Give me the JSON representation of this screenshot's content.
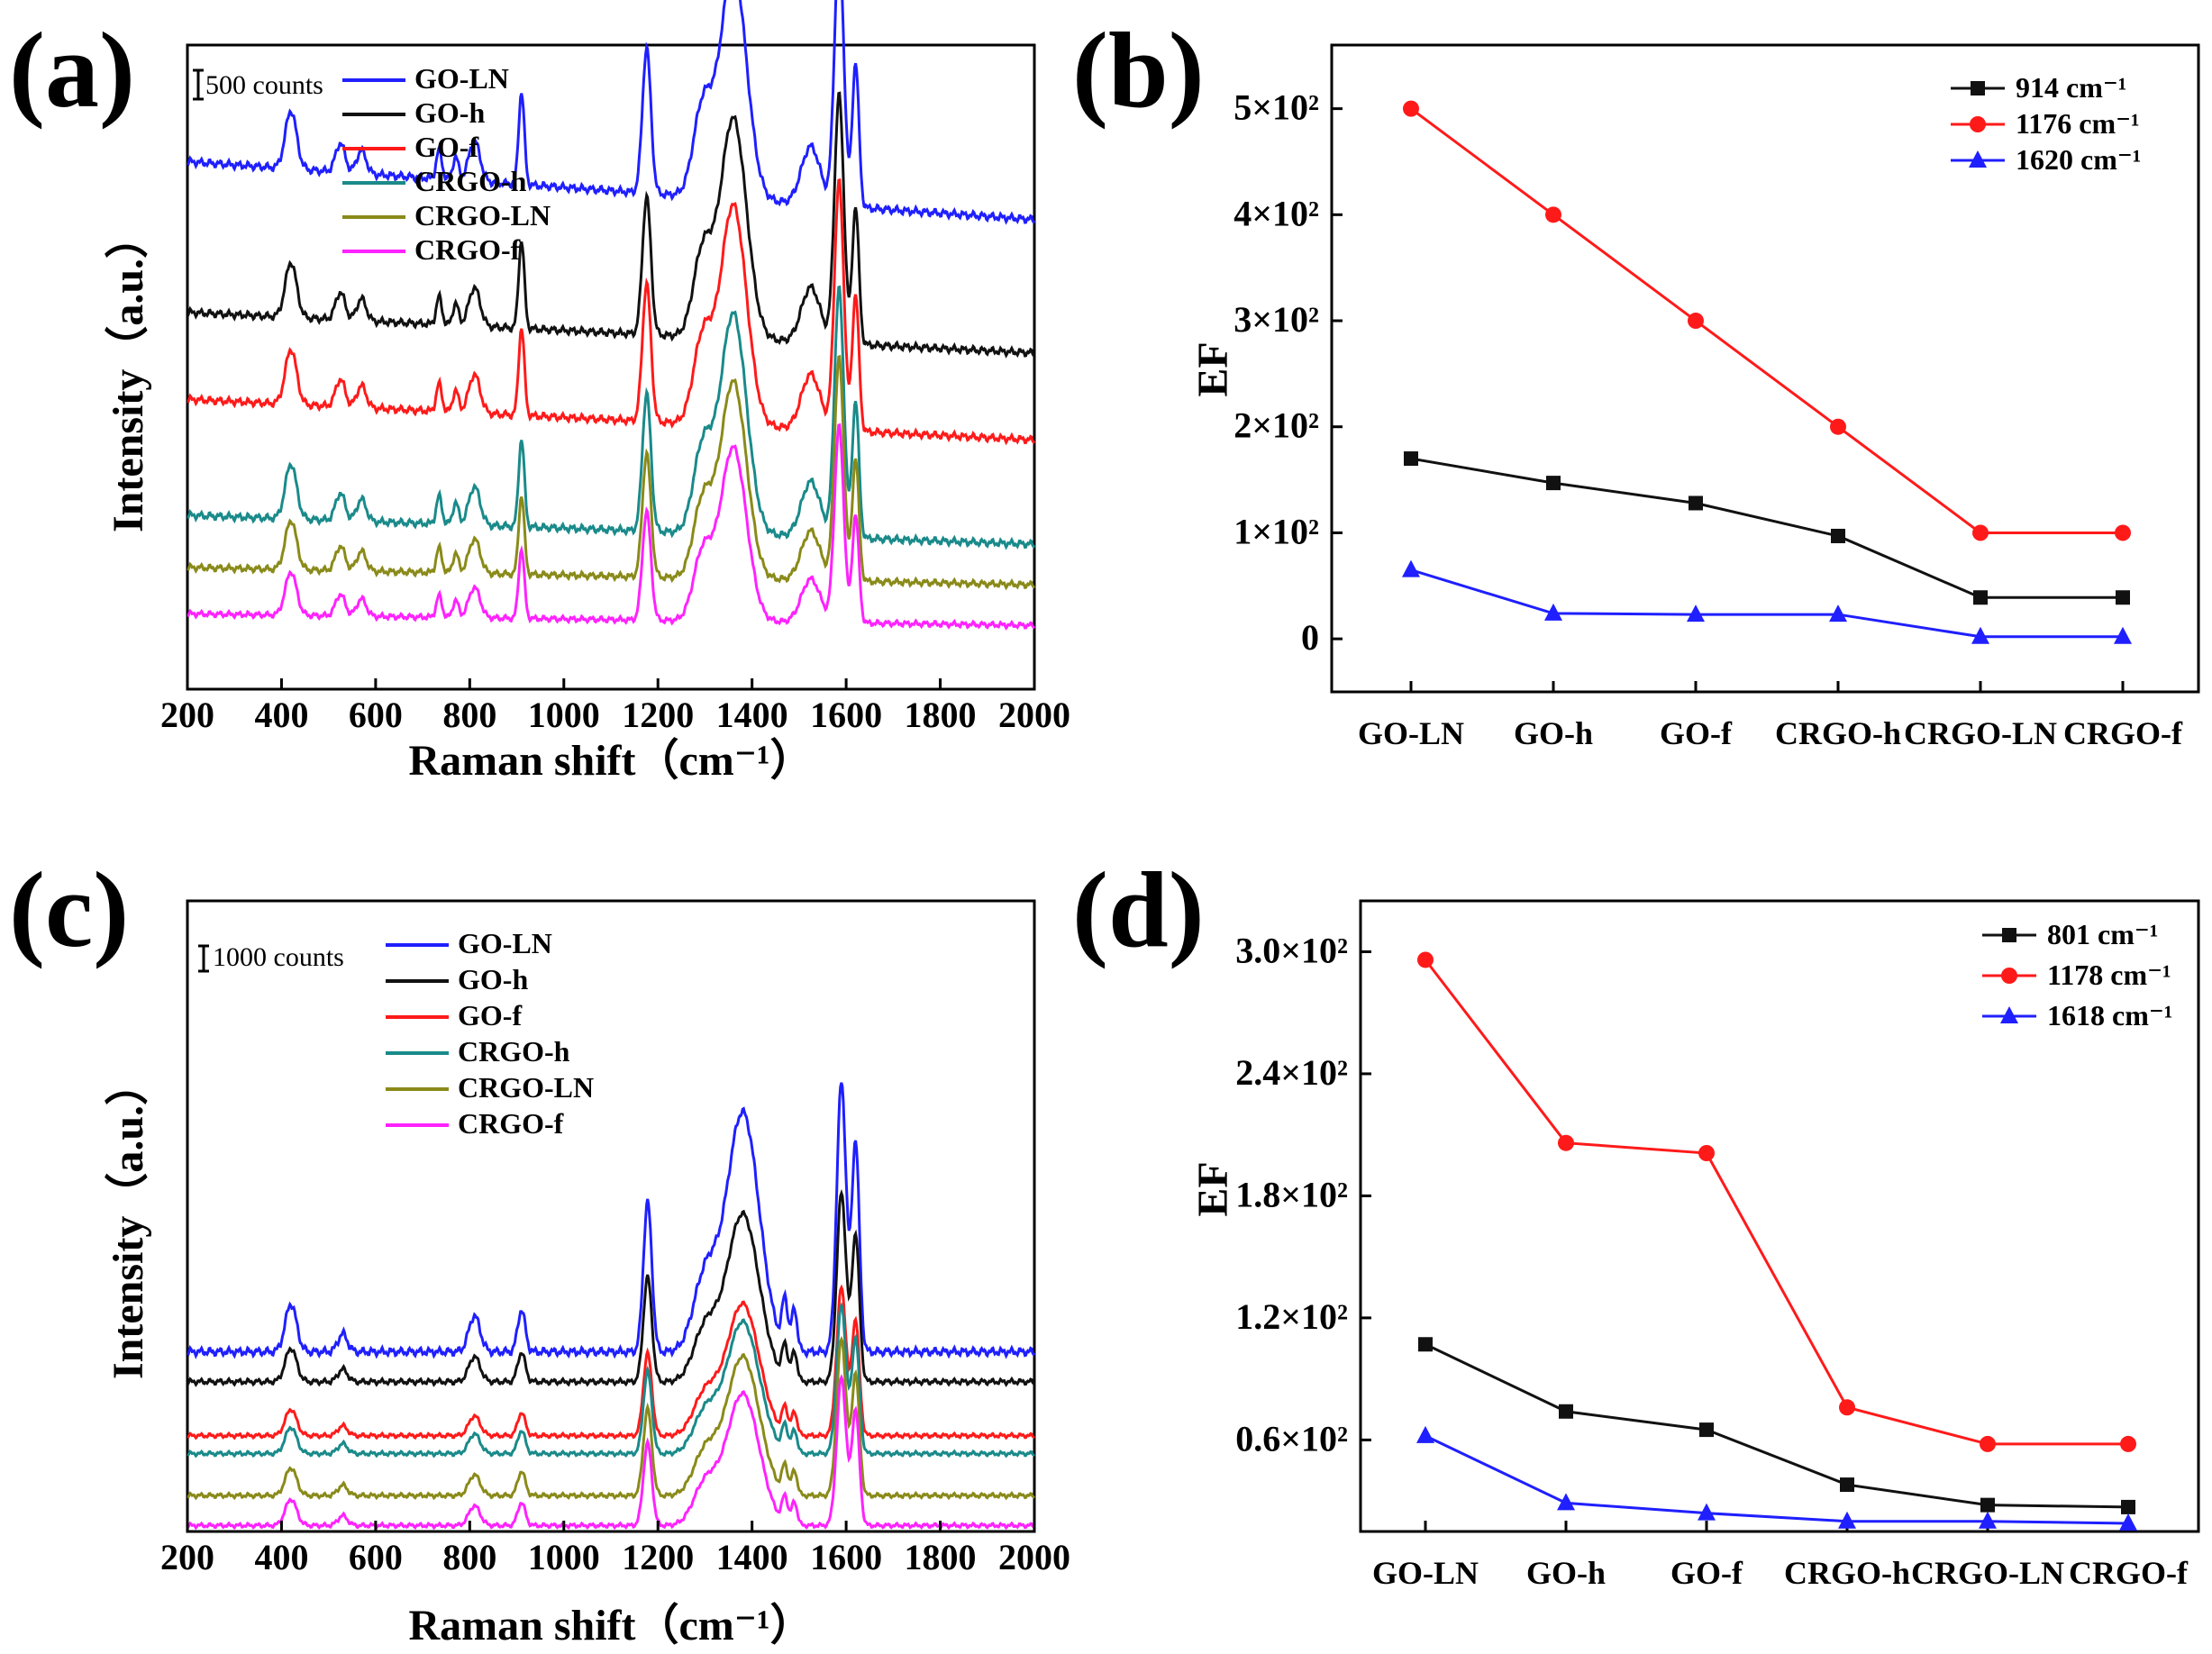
{
  "chart_data": [
    {
      "id": "a",
      "panel_label": "(a)",
      "type": "line",
      "xlabel": "Raman shift（cm⁻¹）",
      "ylabel": "Intensity（a.u.）",
      "xlim": [
        200,
        2000
      ],
      "xticks": [
        "200",
        "400",
        "600",
        "800",
        "1000",
        "1200",
        "1400",
        "1600",
        "1800",
        "2000"
      ],
      "scale_bar_label": "500 counts",
      "legend": [
        "GO-LN",
        "GO-h",
        "GO-f",
        "CRGO-h",
        "CRGO-LN",
        "CRGO-f"
      ],
      "series": [
        {
          "name": "GO-LN",
          "color": "#1f1fff",
          "baseline": 0.81,
          "tilt": 0.1,
          "amp": 1.0
        },
        {
          "name": "GO-h",
          "color": "#111111",
          "baseline": 0.58,
          "tilt": 0.07,
          "amp": 0.95
        },
        {
          "name": "GO-f",
          "color": "#ff1a1a",
          "baseline": 0.43,
          "tilt": 0.07,
          "amp": 0.95
        },
        {
          "name": "CRGO-h",
          "color": "#1a8a8a",
          "baseline": 0.25,
          "tilt": 0.05,
          "amp": 0.95
        },
        {
          "name": "CRGO-LN",
          "color": "#8a8a1a",
          "baseline": 0.18,
          "tilt": 0.03,
          "amp": 0.85
        },
        {
          "name": "CRGO-f",
          "color": "#ff22ff",
          "baseline": 0.11,
          "tilt": 0.02,
          "amp": 0.75
        }
      ],
      "peaks": [
        420,
        525,
        570,
        735,
        770,
        810,
        910,
        1176,
        1295,
        1360,
        1525,
        1585,
        1620
      ]
    },
    {
      "id": "b",
      "panel_label": "(b)",
      "type": "line",
      "ylabel": "EF",
      "categories": [
        "GO-LN",
        "GO-h",
        "GO-f",
        "CRGO-h",
        "CRGO-LN",
        "CRGO-f"
      ],
      "ylim": [
        -50,
        560
      ],
      "yticks": [
        {
          "v": 0,
          "label": "0"
        },
        {
          "v": 100,
          "label": "1×10²"
        },
        {
          "v": 200,
          "label": "2×10²"
        },
        {
          "v": 300,
          "label": "3×10²"
        },
        {
          "v": 400,
          "label": "4×10²"
        },
        {
          "v": 500,
          "label": "5×10²"
        }
      ],
      "series": [
        {
          "name": "914  cm⁻¹",
          "color": "#111111",
          "marker": "square",
          "values": [
            170,
            147,
            128,
            97,
            39,
            39
          ]
        },
        {
          "name": "1176  cm⁻¹",
          "color": "#ff1a1a",
          "marker": "circle",
          "values": [
            500,
            400,
            300,
            200,
            100,
            100
          ]
        },
        {
          "name": "1620  cm⁻¹",
          "color": "#1f1fff",
          "marker": "triangle",
          "values": [
            65,
            24,
            23,
            23,
            2,
            2
          ]
        }
      ]
    },
    {
      "id": "c",
      "panel_label": "(c)",
      "type": "line",
      "xlabel": "Raman shift（cm⁻¹）",
      "ylabel": "Intensity（a.u.）",
      "xlim": [
        200,
        2000
      ],
      "xticks": [
        "200",
        "400",
        "600",
        "800",
        "1000",
        "1200",
        "1400",
        "1600",
        "1800",
        "2000"
      ],
      "scale_bar_label": "1000 counts",
      "legend": [
        "GO-LN",
        "GO-h",
        "GO-f",
        "CRGO-h",
        "CRGO-LN",
        "CRGO-f"
      ],
      "series": [
        {
          "name": "GO-LN",
          "color": "#1f1fff",
          "baseline": 0.3,
          "tilt": 0.0,
          "amp": 1.0
        },
        {
          "name": "GO-h",
          "color": "#111111",
          "baseline": 0.25,
          "tilt": 0.0,
          "amp": 0.7
        },
        {
          "name": "GO-f",
          "color": "#ff1a1a",
          "baseline": 0.16,
          "tilt": 0.0,
          "amp": 0.55
        },
        {
          "name": "CRGO-h",
          "color": "#1a8a8a",
          "baseline": 0.13,
          "tilt": 0.0,
          "amp": 0.55
        },
        {
          "name": "CRGO-LN",
          "color": "#8a8a1a",
          "baseline": 0.06,
          "tilt": 0.0,
          "amp": 0.58
        },
        {
          "name": "CRGO-f",
          "color": "#ff22ff",
          "baseline": 0.01,
          "tilt": 0.0,
          "amp": 0.55
        }
      ],
      "peaks": [
        420,
        530,
        810,
        910,
        1000,
        1178,
        1380,
        1470,
        1590,
        1620
      ]
    },
    {
      "id": "d",
      "panel_label": "(d)",
      "type": "line",
      "ylabel": "EF",
      "categories": [
        "GO-LN",
        "GO-h",
        "GO-f",
        "CRGO-h",
        "CRGO-LN",
        "CRGO-f"
      ],
      "ylim": [
        15,
        325
      ],
      "yticks": [
        {
          "v": 60,
          "label": "0.6×10²"
        },
        {
          "v": 120,
          "label": "1.2×10²"
        },
        {
          "v": 180,
          "label": "1.8×10²"
        },
        {
          "v": 240,
          "label": "2.4×10²"
        },
        {
          "v": 300,
          "label": "3.0×10²"
        }
      ],
      "series": [
        {
          "name": "801    cm⁻¹",
          "color": "#111111",
          "marker": "square",
          "values": [
            107,
            74,
            65,
            38,
            28,
            27
          ]
        },
        {
          "name": "1178  cm⁻¹",
          "color": "#ff1a1a",
          "marker": "circle",
          "values": [
            296,
            206,
            201,
            76,
            58,
            58
          ]
        },
        {
          "name": "1618  cm⁻¹",
          "color": "#1f1fff",
          "marker": "triangle",
          "values": [
            62,
            29,
            24,
            20,
            20,
            19
          ]
        }
      ]
    }
  ]
}
